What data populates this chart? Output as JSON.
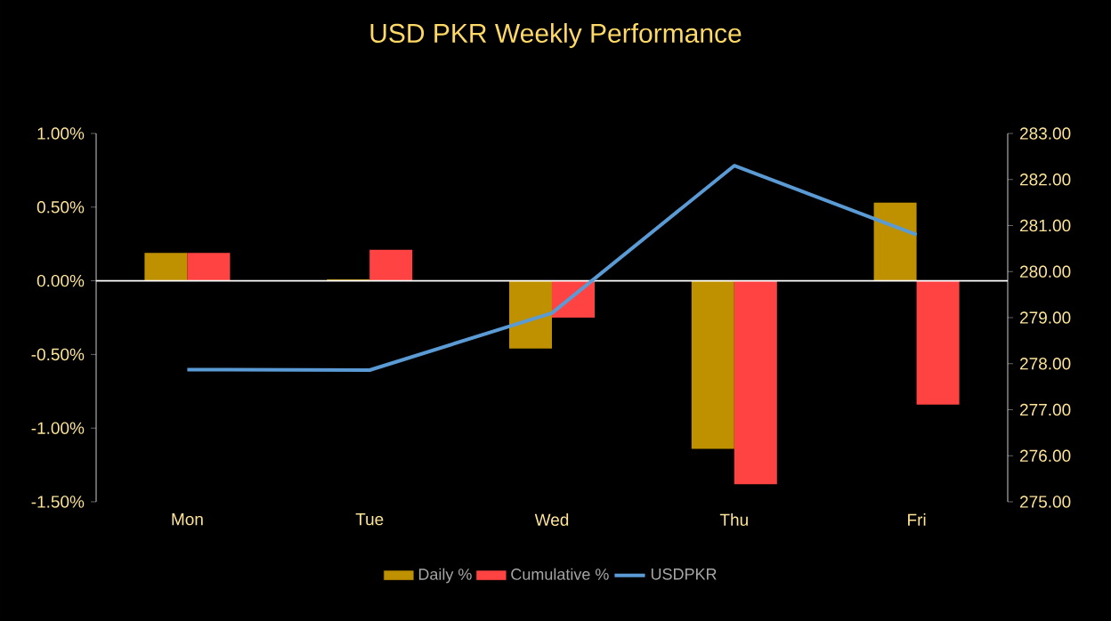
{
  "chart_data": {
    "type": "bar",
    "title": "USD PKR Weekly Performance",
    "categories": [
      "Mon",
      "Tue",
      "Wed",
      "Thu",
      "Fri"
    ],
    "series": [
      {
        "name": "Daily %",
        "color": "#bf9000",
        "values": [
          0.19,
          0.01,
          -0.46,
          -1.14,
          0.53
        ]
      },
      {
        "name": "Cumulative %",
        "color": "#ff4343",
        "values": [
          0.19,
          0.21,
          -0.25,
          -1.38,
          -0.84
        ]
      },
      {
        "name": "USDPKR",
        "type": "line",
        "axis": "y2",
        "color": "#5b9bd5",
        "values": [
          277.87,
          277.86,
          279.1,
          282.3,
          280.8
        ]
      }
    ],
    "ylim": [
      -1.5,
      1.0
    ],
    "yticks": [
      {
        "value": -1.5,
        "label": "-1.50%"
      },
      {
        "value": -1.0,
        "label": "-1.00%"
      },
      {
        "value": -0.5,
        "label": "-0.50%"
      },
      {
        "value": 0,
        "label": "0.00%"
      },
      {
        "value": 0.5,
        "label": "0.50%"
      },
      {
        "value": 1.0,
        "label": "1.00%"
      }
    ],
    "y2lim": [
      275,
      283
    ],
    "y2ticks": [
      {
        "value": 275,
        "label": "275.00"
      },
      {
        "value": 276,
        "label": "276.00"
      },
      {
        "value": 277,
        "label": "277.00"
      },
      {
        "value": 278,
        "label": "278.00"
      },
      {
        "value": 279,
        "label": "279.00"
      },
      {
        "value": 280,
        "label": "280.00"
      },
      {
        "value": 281,
        "label": "281.00"
      },
      {
        "value": 282,
        "label": "282.00"
      },
      {
        "value": 283,
        "label": "283.00"
      }
    ],
    "legend": "bottom"
  }
}
